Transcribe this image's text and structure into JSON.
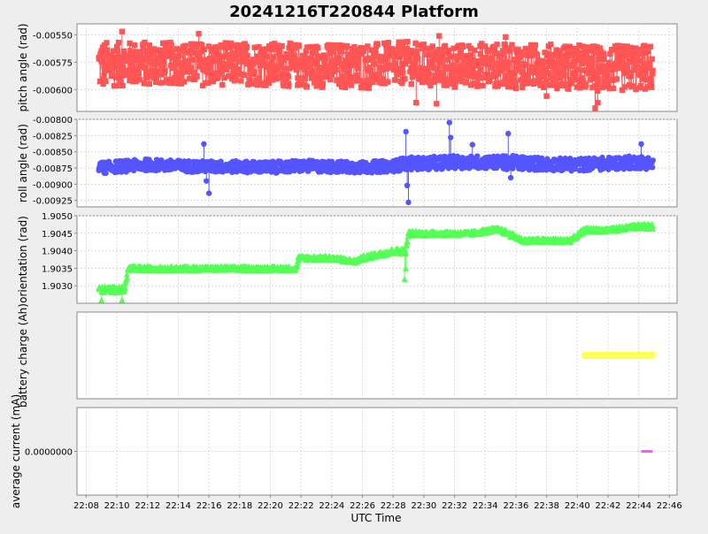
{
  "title": "20241216T220844 Platform",
  "colors": {
    "background": "#eeeeee",
    "panel": "#ffffff",
    "grid": "#d9d9d9",
    "axis": "#888888",
    "text": "#000000"
  },
  "chart_data": [
    {
      "type": "scatter",
      "panel": "pitch",
      "ylabel": "pitch angle (rad)",
      "ylim": [
        -0.0062,
        -0.0054
      ],
      "yticks": [
        -0.0055,
        -0.00575,
        -0.006
      ],
      "ytick_labels": [
        "-0.00550",
        "-0.00575",
        "-0.00600"
      ],
      "grid": true,
      "marker": "square",
      "color": "#ff5555",
      "series": [
        {
          "x": [
            "22:08:50",
            "22:10:00",
            "22:12:00",
            "22:14:00",
            "22:16:00",
            "22:18:00",
            "22:20:00",
            "22:22:00",
            "22:24:00",
            "22:26:00",
            "22:28:00",
            "22:28:50",
            "22:30:00",
            "22:32:00",
            "22:34:00",
            "22:36:00",
            "22:38:00",
            "22:40:00",
            "22:42:00",
            "22:44:00",
            "22:44:55"
          ],
          "y": [
            -0.00578,
            -0.00577,
            -0.00576,
            -0.00576,
            -0.00577,
            -0.00576,
            -0.00577,
            -0.00578,
            -0.00578,
            -0.00579,
            -0.00577,
            -0.00575,
            -0.00578,
            -0.00579,
            -0.00577,
            -0.00579,
            -0.00578,
            -0.0058,
            -0.00581,
            -0.0058,
            -0.0058
          ],
          "band": [
            0.00045,
            0.0004,
            0.0004,
            0.00038,
            0.0004,
            0.00038,
            0.0004,
            0.0004,
            0.0004,
            0.00042,
            0.0004,
            0.00038,
            0.0004,
            0.0004,
            0.0004,
            0.0004,
            0.0004,
            0.00042,
            0.00042,
            0.00042,
            0.00042
          ],
          "extremes": [
            [
              "22:10:20",
              -0.00547
            ],
            [
              "22:15:20",
              -0.00549
            ],
            [
              "22:31:00",
              -0.00551
            ],
            [
              "22:35:20",
              -0.00552
            ],
            [
              "22:29:30",
              -0.00612
            ],
            [
              "22:30:50",
              -0.00613
            ],
            [
              "22:41:10",
              -0.00617
            ],
            [
              "22:41:20",
              -0.00612
            ],
            [
              "22:38:00",
              -0.00606
            ]
          ]
        }
      ]
    },
    {
      "type": "scatter",
      "panel": "roll",
      "ylabel": "roll angle (rad)",
      "ylim": [
        -0.00935,
        -0.008
      ],
      "yticks": [
        -0.008,
        -0.00825,
        -0.0085,
        -0.00875,
        -0.009,
        -0.00925
      ],
      "ytick_labels": [
        "-0.00800",
        "-0.00825",
        "-0.00850",
        "-0.00875",
        "-0.00900",
        "-0.00925"
      ],
      "grid": true,
      "marker": "circle",
      "color": "#5555ff",
      "series": [
        {
          "x": [
            "22:08:50",
            "22:10:00",
            "22:12:00",
            "22:14:00",
            "22:16:00",
            "22:18:00",
            "22:20:00",
            "22:22:00",
            "22:24:00",
            "22:26:00",
            "22:28:00",
            "22:28:50",
            "22:30:00",
            "22:32:00",
            "22:34:00",
            "22:36:00",
            "22:38:00",
            "22:40:00",
            "22:42:00",
            "22:44:00",
            "22:44:55"
          ],
          "y": [
            -0.00875,
            -0.00873,
            -0.0087,
            -0.00872,
            -0.00873,
            -0.00873,
            -0.00874,
            -0.00872,
            -0.00873,
            -0.00874,
            -0.00872,
            -0.00868,
            -0.00868,
            -0.00866,
            -0.00866,
            -0.00867,
            -0.00869,
            -0.0087,
            -0.00868,
            -0.00866,
            -0.00868
          ],
          "band": [
            0.00018,
            0.00018,
            0.00018,
            0.00018,
            0.00018,
            0.00018,
            0.00018,
            0.00018,
            0.00018,
            0.00018,
            0.00018,
            0.0002,
            0.0002,
            0.0002,
            0.0002,
            0.00022,
            0.0002,
            0.0002,
            0.0002,
            0.0002,
            0.0002
          ],
          "extremes": [
            [
              "22:15:40",
              -0.00838
            ],
            [
              "22:15:50",
              -0.00895
            ],
            [
              "22:16:00",
              -0.00914
            ],
            [
              "22:28:50",
              -0.00819
            ],
            [
              "22:28:55",
              -0.00902
            ],
            [
              "22:29:00",
              -0.00928
            ],
            [
              "22:31:40",
              -0.00805
            ],
            [
              "22:31:45",
              -0.00828
            ],
            [
              "22:33:10",
              -0.00839
            ],
            [
              "22:35:30",
              -0.00822
            ],
            [
              "22:44:10",
              -0.00838
            ],
            [
              "22:35:40",
              -0.0089
            ]
          ]
        }
      ]
    },
    {
      "type": "scatter",
      "panel": "orientation",
      "ylabel": "orientation (rad)",
      "ylim": [
        1.9025,
        1.905
      ],
      "yticks": [
        1.903,
        1.9035,
        1.904,
        1.9045,
        1.905
      ],
      "ytick_labels": [
        "1.9030",
        "1.9035",
        "1.9040",
        "1.9045",
        "1.9050"
      ],
      "grid": true,
      "marker": "triangle",
      "color": "#55ff55",
      "series": [
        {
          "x": [
            "22:08:50",
            "22:10:00",
            "22:10:30",
            "22:10:45",
            "22:12:00",
            "22:14:00",
            "22:16:00",
            "22:18:00",
            "22:20:00",
            "22:21:40",
            "22:21:50",
            "22:24:00",
            "22:25:30",
            "22:26:00",
            "22:28:00",
            "22:28:50",
            "22:29:00",
            "22:31:00",
            "22:33:00",
            "22:34:30",
            "22:35:00",
            "22:36:30",
            "22:38:00",
            "22:39:30",
            "22:40:30",
            "22:42:00",
            "22:44:00",
            "22:44:55"
          ],
          "y": [
            1.9029,
            1.9029,
            1.9029,
            1.9035,
            1.9035,
            1.9035,
            1.9035,
            1.9035,
            1.9035,
            1.9035,
            1.9038,
            1.9038,
            1.9037,
            1.9038,
            1.904,
            1.904,
            1.9045,
            1.9045,
            1.9045,
            1.9046,
            1.9046,
            1.9043,
            1.9043,
            1.9043,
            1.9046,
            1.9046,
            1.9047,
            1.9047
          ],
          "band": [
            0.00018,
            0.00018,
            0.00018,
            0.00014,
            0.00012,
            0.00012,
            0.00012,
            0.00012,
            0.00012,
            0.00012,
            0.00012,
            0.00012,
            0.00012,
            0.00012,
            0.00016,
            0.00016,
            0.00014,
            0.00012,
            0.00012,
            0.00012,
            0.00012,
            0.00012,
            0.00012,
            0.00012,
            0.00012,
            0.00012,
            0.00014,
            0.00014
          ],
          "extremes": [
            [
              "22:09:00",
              1.9026
            ],
            [
              "22:10:20",
              1.9026
            ],
            [
              "22:28:45",
              1.9032
            ],
            [
              "22:28:50",
              1.9035
            ]
          ]
        }
      ]
    },
    {
      "type": "line",
      "panel": "battery",
      "ylabel": "battery charge (Ah)",
      "yticks": [],
      "ytick_labels": [],
      "grid": true,
      "color": "#ffff55",
      "series": [
        {
          "x": [
            "22:40:30",
            "22:44:55"
          ],
          "y": [
            0.5,
            0.5
          ]
        }
      ]
    },
    {
      "type": "line",
      "panel": "current",
      "ylabel": "average current (mA)",
      "ylim": [
        -1,
        1
      ],
      "yticks": [
        0
      ],
      "ytick_labels": [
        "0.0000000"
      ],
      "grid": true,
      "color": "#ff55ff",
      "series": [
        {
          "x": [
            "22:44:10",
            "22:44:55"
          ],
          "y": [
            0,
            0
          ]
        }
      ]
    }
  ],
  "x_axis": {
    "label": "UTC Time",
    "ticks": [
      "22:08",
      "22:10",
      "22:12",
      "22:14",
      "22:16",
      "22:18",
      "22:20",
      "22:22",
      "22:24",
      "22:26",
      "22:28",
      "22:30",
      "22:32",
      "22:34",
      "22:36",
      "22:38",
      "22:40",
      "22:42",
      "22:44",
      "22:46"
    ]
  }
}
